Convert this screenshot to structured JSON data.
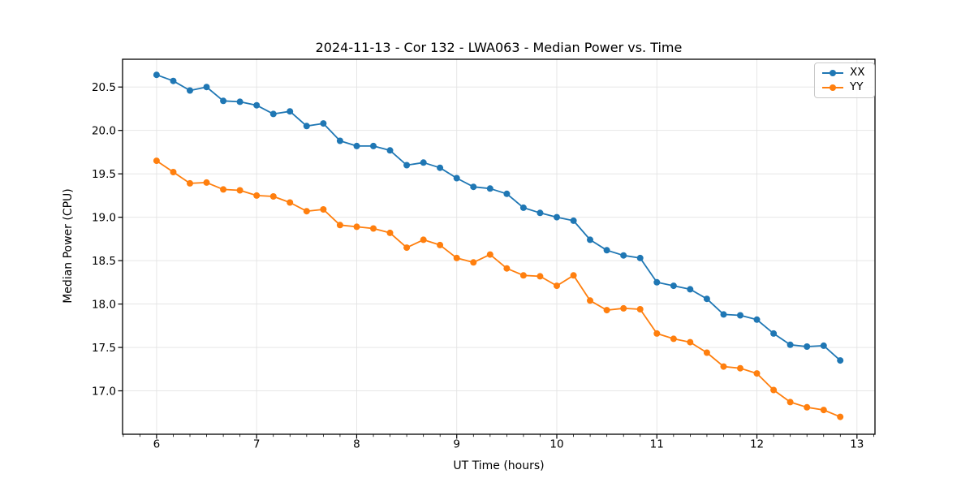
{
  "figure": {
    "title": "2024-11-13 - Cor 132 - LWA063 - Median Power vs. Time",
    "xlabel": "UT Time (hours)",
    "ylabel": "Median Power (CPU)",
    "background_color": "#ffffff",
    "text_color": "#000000",
    "spine_color": "#000000",
    "grid_color": "#e3e3e3"
  },
  "chart_data": {
    "type": "line",
    "title": "2024-11-13 - Cor 132 - LWA063 - Median Power vs. Time",
    "xlabel": "UT Time (hours)",
    "ylabel": "Median Power (CPU)",
    "grid": true,
    "legend_position": "upper right",
    "xlim": [
      5.66,
      13.18
    ],
    "ylim": [
      16.5,
      20.82
    ],
    "xticks": [
      6,
      7,
      8,
      9,
      10,
      11,
      12,
      13
    ],
    "yticks": [
      17.0,
      17.5,
      18.0,
      18.5,
      19.0,
      19.5,
      20.0,
      20.5
    ],
    "minor_xtick_interval": 0.16667,
    "x": [
      6.0,
      6.167,
      6.333,
      6.5,
      6.667,
      6.833,
      7.0,
      7.167,
      7.333,
      7.5,
      7.667,
      7.833,
      8.0,
      8.167,
      8.333,
      8.5,
      8.667,
      8.833,
      9.0,
      9.167,
      9.333,
      9.5,
      9.667,
      9.833,
      10.0,
      10.167,
      10.333,
      10.5,
      10.667,
      10.833,
      11.0,
      11.167,
      11.333,
      11.5,
      11.667,
      11.833,
      12.0,
      12.167,
      12.333,
      12.5,
      12.667,
      12.833
    ],
    "series": [
      {
        "name": "XX",
        "color": "#1f77b4",
        "marker": "o",
        "values": [
          20.64,
          20.57,
          20.46,
          20.5,
          20.34,
          20.33,
          20.29,
          20.19,
          20.22,
          20.05,
          20.08,
          19.88,
          19.82,
          19.82,
          19.77,
          19.6,
          19.63,
          19.57,
          19.45,
          19.35,
          19.33,
          19.27,
          19.11,
          19.05,
          19.0,
          18.96,
          18.74,
          18.62,
          18.56,
          18.53,
          18.25,
          18.21,
          18.17,
          18.06,
          17.88,
          17.87,
          17.82,
          17.66,
          17.53,
          17.51,
          17.52,
          17.35
        ]
      },
      {
        "name": "YY",
        "color": "#ff7f0e",
        "marker": "o",
        "values": [
          19.65,
          19.52,
          19.39,
          19.4,
          19.32,
          19.31,
          19.25,
          19.24,
          19.17,
          19.07,
          19.09,
          18.91,
          18.89,
          18.87,
          18.82,
          18.65,
          18.74,
          18.68,
          18.53,
          18.48,
          18.57,
          18.41,
          18.33,
          18.32,
          18.21,
          18.33,
          18.04,
          17.93,
          17.95,
          17.94,
          17.66,
          17.6,
          17.56,
          17.44,
          17.28,
          17.26,
          17.2,
          17.01,
          16.87,
          16.81,
          16.78,
          16.7
        ]
      }
    ]
  }
}
